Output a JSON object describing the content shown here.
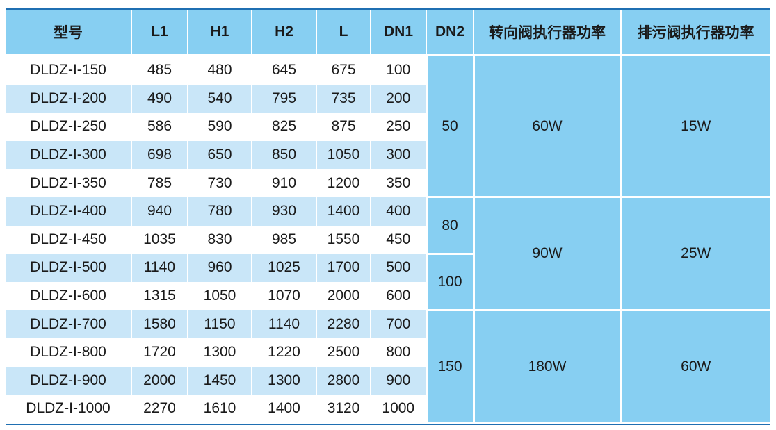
{
  "colors": {
    "header": "#87cff2",
    "alt_row": "#c9e6f8",
    "rule": "#1f6fb2"
  },
  "headers": [
    "型号",
    "L1",
    "H1",
    "H2",
    "L",
    "DN1",
    "DN2",
    "转向阀执行器功率",
    "排污阀执行器功率"
  ],
  "rows": [
    [
      "DLDZ-I-150",
      "485",
      "480",
      "645",
      "675",
      "100"
    ],
    [
      "DLDZ-I-200",
      "490",
      "540",
      "795",
      "735",
      "200"
    ],
    [
      "DLDZ-I-250",
      "586",
      "590",
      "825",
      "875",
      "250"
    ],
    [
      "DLDZ-I-300",
      "698",
      "650",
      "850",
      "1050",
      "300"
    ],
    [
      "DLDZ-I-350",
      "785",
      "730",
      "910",
      "1200",
      "350"
    ],
    [
      "DLDZ-I-400",
      "940",
      "780",
      "930",
      "1400",
      "400"
    ],
    [
      "DLDZ-I-450",
      "1035",
      "830",
      "985",
      "1550",
      "450"
    ],
    [
      "DLDZ-I-500",
      "1140",
      "960",
      "1025",
      "1700",
      "500"
    ],
    [
      "DLDZ-I-600",
      "1315",
      "1050",
      "1070",
      "2000",
      "600"
    ],
    [
      "DLDZ-I-700",
      "1580",
      "1150",
      "1140",
      "2280",
      "700"
    ],
    [
      "DLDZ-I-800",
      "1720",
      "1300",
      "1220",
      "2500",
      "800"
    ],
    [
      "DLDZ-I-900",
      "2000",
      "1450",
      "1300",
      "2800",
      "900"
    ],
    [
      "DLDZ-I-1000",
      "2270",
      "1610",
      "1400",
      "3120",
      "1000"
    ]
  ],
  "merged": [
    {
      "col": "dn2",
      "start": 0,
      "span": 5,
      "value": "50"
    },
    {
      "col": "dn2",
      "start": 5,
      "span": 2,
      "value": "80"
    },
    {
      "col": "dn2",
      "start": 7,
      "span": 2,
      "value": "100"
    },
    {
      "col": "dn2",
      "start": 9,
      "span": 4,
      "value": "150"
    },
    {
      "col": "turn_power",
      "start": 0,
      "span": 5,
      "value": "60W"
    },
    {
      "col": "turn_power",
      "start": 5,
      "span": 4,
      "value": "90W"
    },
    {
      "col": "turn_power",
      "start": 9,
      "span": 4,
      "value": "180W"
    },
    {
      "col": "drain_power",
      "start": 0,
      "span": 5,
      "value": "15W"
    },
    {
      "col": "drain_power",
      "start": 5,
      "span": 4,
      "value": "25W"
    },
    {
      "col": "drain_power",
      "start": 9,
      "span": 4,
      "value": "60W"
    }
  ]
}
